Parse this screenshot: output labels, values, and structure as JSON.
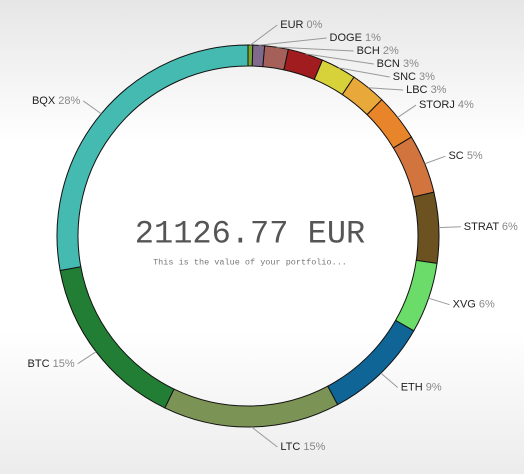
{
  "chart_data": {
    "type": "donut",
    "center_value": "21126.77 EUR",
    "center_caption": "This is the value of your portfolio...",
    "categories": [
      "EUR",
      "DOGE",
      "BCH",
      "BCN",
      "SNC",
      "LBC",
      "STORJ",
      "SC",
      "STRAT",
      "XVG",
      "ETH",
      "LTC",
      "BTC",
      "BQX"
    ],
    "values": [
      0.4,
      1,
      2,
      3,
      3,
      3,
      4,
      5,
      6,
      6,
      9,
      15,
      15,
      28
    ],
    "value_labels": [
      "0%",
      "1%",
      "2%",
      "3%",
      "3%",
      "3%",
      "4%",
      "5%",
      "6%",
      "6%",
      "9%",
      "15%",
      "15%",
      "28%"
    ],
    "colors": [
      "#7aa52f",
      "#7f6a8e",
      "#a5605a",
      "#a01c1e",
      "#d8d23a",
      "#e9a83a",
      "#e8852a",
      "#d2743e",
      "#6b5220",
      "#6bdc6a",
      "#0e6596",
      "#7b9455",
      "#227e34",
      "#45bab1"
    ]
  }
}
